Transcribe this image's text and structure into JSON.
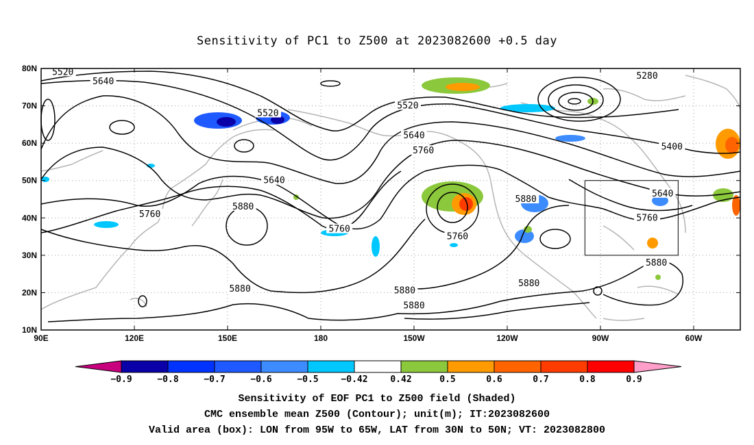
{
  "title": "Sensitivity of PC1 to Z500 at 2023082600 +0.5 day",
  "lat_ticks": [
    "80N",
    "70N",
    "60N",
    "50N",
    "40N",
    "30N",
    "20N",
    "10N"
  ],
  "lon_ticks": [
    "90E",
    "120E",
    "150E",
    "180",
    "150W",
    "120W",
    "90W",
    "60W"
  ],
  "contour_labels": [
    {
      "text": "5520",
      "lon": 97,
      "lat": 79
    },
    {
      "text": "5640",
      "lon": 110,
      "lat": 76.5
    },
    {
      "text": "5520",
      "lon": 163,
      "lat": 68
    },
    {
      "text": "5280",
      "lon": 285,
      "lat": 78
    },
    {
      "text": "5520",
      "lon": 208,
      "lat": 70
    },
    {
      "text": "5640",
      "lon": 210,
      "lat": 62
    },
    {
      "text": "5760",
      "lon": 213,
      "lat": 58
    },
    {
      "text": "5400",
      "lon": 293,
      "lat": 59
    },
    {
      "text": "5640",
      "lon": 165,
      "lat": 50
    },
    {
      "text": "5880",
      "lon": 155,
      "lat": 43
    },
    {
      "text": "5760",
      "lon": 125,
      "lat": 41
    },
    {
      "text": "5760",
      "lon": 186,
      "lat": 37
    },
    {
      "text": "5760",
      "lon": 224,
      "lat": 35
    },
    {
      "text": "5880",
      "lon": 246,
      "lat": 45
    },
    {
      "text": "5640",
      "lon": 290,
      "lat": 46.5
    },
    {
      "text": "5760",
      "lon": 285,
      "lat": 40
    },
    {
      "text": "5880",
      "lon": 288,
      "lat": 28
    },
    {
      "text": "5880",
      "lon": 154,
      "lat": 21
    },
    {
      "text": "5880",
      "lon": 207,
      "lat": 20.5
    },
    {
      "text": "5880",
      "lon": 247,
      "lat": 22.5
    },
    {
      "text": "5880",
      "lon": 210,
      "lat": 16.5
    }
  ],
  "colorbar": {
    "labels": [
      "-0.9",
      "-0.8",
      "-0.7",
      "-0.6",
      "-0.5",
      "-0.42",
      "0.42",
      "0.5",
      "0.6",
      "0.7",
      "0.8",
      "0.9"
    ],
    "colors": [
      "#0a00a8",
      "#0033ff",
      "#1e5aff",
      "#3c8cff",
      "#00c8ff",
      "#ffffff",
      "#8cc83c",
      "#ff9b00",
      "#ff6400",
      "#ff3c00",
      "#ff0000"
    ],
    "low_end_color": "#c8007e",
    "high_end_color": "#ff9ec8"
  },
  "valid_box": {
    "lon_min": -95,
    "lon_max": -65,
    "lat_min": 30,
    "lat_max": 50
  },
  "footer": {
    "line1": "Sensitivity of EOF PC1 to Z500 field (Shaded)",
    "line2": "CMC ensemble mean Z500 (Contour); unit(m); IT:2023082600",
    "line3": "Valid area (box): LON from 95W to 65W, LAT from 30N to 50N; VT: 2023082800"
  }
}
